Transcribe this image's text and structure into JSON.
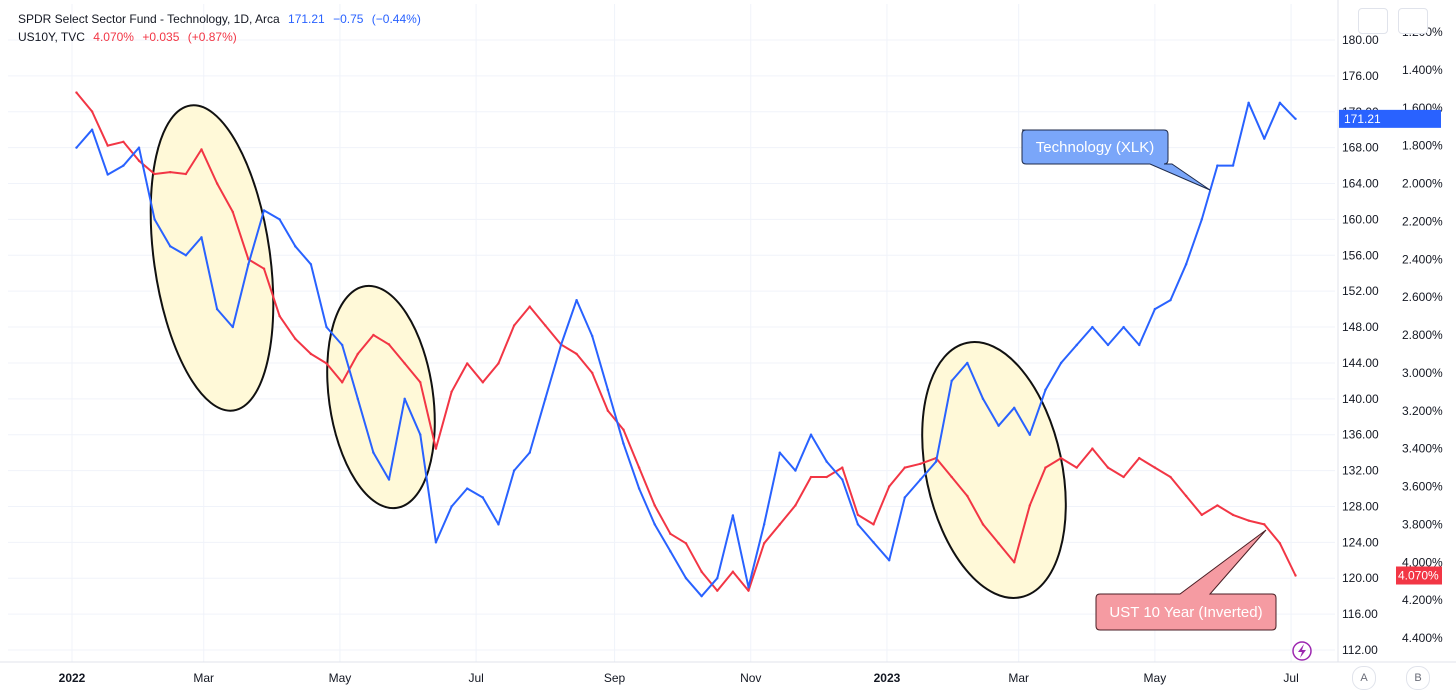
{
  "legend": {
    "xlk": {
      "name": "SPDR Select Sector Fund - Technology, 1D, Arca",
      "last": "171.21",
      "change": "−0.75",
      "pct": "(−0.44%)"
    },
    "us10y": {
      "name": "US10Y, TVC",
      "last": "4.070%",
      "change": "+0.035",
      "pct": "(+0.87%)"
    }
  },
  "colors": {
    "xlk": "#2962ff",
    "us10y": "#f23645",
    "highlight_fill": "#fff9d8",
    "callout_blue": "#7aa6f9",
    "callout_red": "#f59ba2"
  },
  "badges": {
    "xlk_last": "171.21",
    "us10y_last": "4.070%"
  },
  "annotations": {
    "xlk_label": "Technology (XLK)",
    "us10y_label": "UST 10 Year (Inverted)"
  },
  "controls": {
    "btn_a": "A",
    "btn_b": "B",
    "lightning_icon": "lightning-icon"
  },
  "chart_data": {
    "type": "line",
    "x_axis": {
      "ticks": [
        "2022",
        "Mar",
        "May",
        "Jul",
        "Sep",
        "Nov",
        "2023",
        "Mar",
        "May",
        "Jul"
      ]
    },
    "y_axis_price": {
      "ticks": [
        "112.00",
        "116.00",
        "120.00",
        "124.00",
        "128.00",
        "132.00",
        "136.00",
        "140.00",
        "144.00",
        "148.00",
        "152.00",
        "156.00",
        "160.00",
        "164.00",
        "168.00",
        "172.00",
        "176.00",
        "180.00"
      ]
    },
    "y_axis_yield": {
      "inverted": true,
      "ticks": [
        "1.200%",
        "1.400%",
        "1.600%",
        "1.800%",
        "2.000%",
        "2.200%",
        "2.400%",
        "2.600%",
        "2.800%",
        "3.000%",
        "3.200%",
        "3.400%",
        "3.600%",
        "3.800%",
        "4.000%",
        "4.200%",
        "4.400%"
      ]
    },
    "series": [
      {
        "name": "Technology (XLK)",
        "axis": "price",
        "values": [
          [
            "2022-01-03",
            168
          ],
          [
            "2022-01-10",
            170
          ],
          [
            "2022-01-17",
            165
          ],
          [
            "2022-01-24",
            166
          ],
          [
            "2022-01-31",
            168
          ],
          [
            "2022-02-07",
            160
          ],
          [
            "2022-02-14",
            157
          ],
          [
            "2022-02-21",
            156
          ],
          [
            "2022-02-28",
            158
          ],
          [
            "2022-03-07",
            150
          ],
          [
            "2022-03-14",
            148
          ],
          [
            "2022-03-21",
            155
          ],
          [
            "2022-03-28",
            161
          ],
          [
            "2022-04-04",
            160
          ],
          [
            "2022-04-11",
            157
          ],
          [
            "2022-04-18",
            155
          ],
          [
            "2022-04-25",
            148
          ],
          [
            "2022-05-02",
            146
          ],
          [
            "2022-05-09",
            140
          ],
          [
            "2022-05-16",
            134
          ],
          [
            "2022-05-23",
            131
          ],
          [
            "2022-05-30",
            140
          ],
          [
            "2022-06-06",
            136
          ],
          [
            "2022-06-13",
            124
          ],
          [
            "2022-06-20",
            128
          ],
          [
            "2022-06-27",
            130
          ],
          [
            "2022-07-04",
            129
          ],
          [
            "2022-07-11",
            126
          ],
          [
            "2022-07-18",
            132
          ],
          [
            "2022-07-25",
            134
          ],
          [
            "2022-08-01",
            140
          ],
          [
            "2022-08-08",
            146
          ],
          [
            "2022-08-15",
            151
          ],
          [
            "2022-08-22",
            147
          ],
          [
            "2022-08-29",
            141
          ],
          [
            "2022-09-05",
            135
          ],
          [
            "2022-09-12",
            130
          ],
          [
            "2022-09-19",
            126
          ],
          [
            "2022-09-26",
            123
          ],
          [
            "2022-10-03",
            120
          ],
          [
            "2022-10-10",
            118
          ],
          [
            "2022-10-17",
            120
          ],
          [
            "2022-10-24",
            127
          ],
          [
            "2022-10-31",
            119
          ],
          [
            "2022-11-07",
            126
          ],
          [
            "2022-11-14",
            134
          ],
          [
            "2022-11-21",
            132
          ],
          [
            "2022-11-28",
            136
          ],
          [
            "2022-12-05",
            133
          ],
          [
            "2022-12-12",
            131
          ],
          [
            "2022-12-19",
            126
          ],
          [
            "2022-12-26",
            124
          ],
          [
            "2023-01-02",
            122
          ],
          [
            "2023-01-09",
            129
          ],
          [
            "2023-01-16",
            131
          ],
          [
            "2023-01-23",
            133
          ],
          [
            "2023-01-30",
            142
          ],
          [
            "2023-02-06",
            144
          ],
          [
            "2023-02-13",
            140
          ],
          [
            "2023-02-20",
            137
          ],
          [
            "2023-02-27",
            139
          ],
          [
            "2023-03-06",
            136
          ],
          [
            "2023-03-13",
            141
          ],
          [
            "2023-03-20",
            144
          ],
          [
            "2023-03-27",
            146
          ],
          [
            "2023-04-03",
            148
          ],
          [
            "2023-04-10",
            146
          ],
          [
            "2023-04-17",
            148
          ],
          [
            "2023-04-24",
            146
          ],
          [
            "2023-05-01",
            150
          ],
          [
            "2023-05-08",
            151
          ],
          [
            "2023-05-15",
            155
          ],
          [
            "2023-05-22",
            160
          ],
          [
            "2023-05-29",
            166
          ],
          [
            "2023-06-05",
            166
          ],
          [
            "2023-06-12",
            173
          ],
          [
            "2023-06-19",
            169
          ],
          [
            "2023-06-26",
            173
          ],
          [
            "2023-07-03",
            171.21
          ]
        ]
      },
      {
        "name": "UST 10 Year (Inverted)",
        "axis": "yield",
        "values": [
          [
            "2022-01-03",
            1.52
          ],
          [
            "2022-01-10",
            1.62
          ],
          [
            "2022-01-17",
            1.8
          ],
          [
            "2022-01-24",
            1.78
          ],
          [
            "2022-01-31",
            1.88
          ],
          [
            "2022-02-07",
            1.95
          ],
          [
            "2022-02-14",
            1.94
          ],
          [
            "2022-02-21",
            1.95
          ],
          [
            "2022-02-28",
            1.82
          ],
          [
            "2022-03-07",
            2.0
          ],
          [
            "2022-03-14",
            2.15
          ],
          [
            "2022-03-21",
            2.4
          ],
          [
            "2022-03-28",
            2.45
          ],
          [
            "2022-04-04",
            2.7
          ],
          [
            "2022-04-11",
            2.82
          ],
          [
            "2022-04-18",
            2.9
          ],
          [
            "2022-04-25",
            2.95
          ],
          [
            "2022-05-02",
            3.05
          ],
          [
            "2022-05-09",
            2.9
          ],
          [
            "2022-05-16",
            2.8
          ],
          [
            "2022-05-23",
            2.85
          ],
          [
            "2022-05-30",
            2.95
          ],
          [
            "2022-06-06",
            3.05
          ],
          [
            "2022-06-13",
            3.4
          ],
          [
            "2022-06-20",
            3.1
          ],
          [
            "2022-06-27",
            2.95
          ],
          [
            "2022-07-04",
            3.05
          ],
          [
            "2022-07-11",
            2.95
          ],
          [
            "2022-07-18",
            2.75
          ],
          [
            "2022-07-25",
            2.65
          ],
          [
            "2022-08-01",
            2.75
          ],
          [
            "2022-08-08",
            2.85
          ],
          [
            "2022-08-15",
            2.9
          ],
          [
            "2022-08-22",
            3.0
          ],
          [
            "2022-08-29",
            3.2
          ],
          [
            "2022-09-05",
            3.3
          ],
          [
            "2022-09-12",
            3.5
          ],
          [
            "2022-09-19",
            3.7
          ],
          [
            "2022-09-26",
            3.85
          ],
          [
            "2022-10-03",
            3.9
          ],
          [
            "2022-10-10",
            4.05
          ],
          [
            "2022-10-17",
            4.15
          ],
          [
            "2022-10-24",
            4.05
          ],
          [
            "2022-10-31",
            4.15
          ],
          [
            "2022-11-07",
            3.9
          ],
          [
            "2022-11-14",
            3.8
          ],
          [
            "2022-11-21",
            3.7
          ],
          [
            "2022-11-28",
            3.55
          ],
          [
            "2022-12-05",
            3.55
          ],
          [
            "2022-12-12",
            3.5
          ],
          [
            "2022-12-19",
            3.75
          ],
          [
            "2022-12-26",
            3.8
          ],
          [
            "2023-01-02",
            3.6
          ],
          [
            "2023-01-09",
            3.5
          ],
          [
            "2023-01-16",
            3.48
          ],
          [
            "2023-01-23",
            3.45
          ],
          [
            "2023-01-30",
            3.55
          ],
          [
            "2023-02-06",
            3.65
          ],
          [
            "2023-02-13",
            3.8
          ],
          [
            "2023-02-20",
            3.9
          ],
          [
            "2023-02-27",
            4.0
          ],
          [
            "2023-03-06",
            3.7
          ],
          [
            "2023-03-13",
            3.5
          ],
          [
            "2023-03-20",
            3.45
          ],
          [
            "2023-03-27",
            3.5
          ],
          [
            "2023-04-03",
            3.4
          ],
          [
            "2023-04-10",
            3.5
          ],
          [
            "2023-04-17",
            3.55
          ],
          [
            "2023-04-24",
            3.45
          ],
          [
            "2023-05-01",
            3.5
          ],
          [
            "2023-05-08",
            3.55
          ],
          [
            "2023-05-15",
            3.65
          ],
          [
            "2023-05-22",
            3.75
          ],
          [
            "2023-05-29",
            3.7
          ],
          [
            "2023-06-05",
            3.75
          ],
          [
            "2023-06-12",
            3.78
          ],
          [
            "2023-06-19",
            3.8
          ],
          [
            "2023-06-26",
            3.9
          ],
          [
            "2023-07-03",
            4.07
          ]
        ]
      }
    ]
  }
}
